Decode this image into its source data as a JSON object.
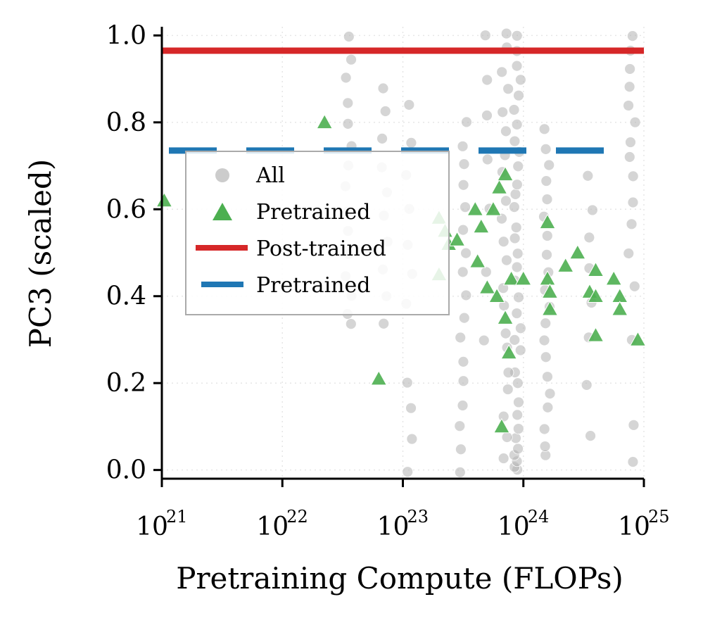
{
  "chart_data": {
    "type": "scatter",
    "xlabel": "Pretraining Compute (FLOPs)",
    "ylabel": "PC3 (scaled)",
    "xscale": "log",
    "xlim_exp": [
      21,
      25
    ],
    "ylim": [
      -0.02,
      1.02
    ],
    "x_ticks": [
      {
        "base": "10",
        "exp": "21"
      },
      {
        "base": "10",
        "exp": "22"
      },
      {
        "base": "10",
        "exp": "23"
      },
      {
        "base": "10",
        "exp": "24"
      },
      {
        "base": "10",
        "exp": "25"
      }
    ],
    "x_tick_exps": [
      21,
      22,
      23,
      24,
      25
    ],
    "y_ticks": [
      "0.0",
      "0.2",
      "0.4",
      "0.6",
      "0.8",
      "1.0"
    ],
    "y_tick_values": [
      0.0,
      0.2,
      0.4,
      0.6,
      0.8,
      1.0
    ],
    "grid": "dotted",
    "legend": {
      "position": "upper-left",
      "entries": [
        "All",
        "Pretrained",
        "Post-trained",
        "Pretrained"
      ]
    },
    "colors": {
      "all": "#b3b3b3",
      "pretrained_points": "#4caf50",
      "post_trained_line": "#d62728",
      "pretrained_line": "#1f77b4"
    },
    "series": [
      {
        "name": "All",
        "marker": "circle",
        "note": "dense gray columns of points at common compute budgets",
        "columns": [
          {
            "x_exp": 23.95,
            "y": [
              0.0,
              0.01,
              0.02,
              0.03,
              0.05,
              0.07,
              0.1,
              0.13,
              0.16,
              0.2,
              0.23,
              0.27,
              0.3,
              0.33,
              0.36,
              0.4,
              0.43,
              0.47,
              0.5,
              0.53,
              0.56,
              0.6,
              0.63,
              0.66,
              0.7,
              0.73,
              0.76,
              0.8,
              0.83,
              0.86,
              0.9,
              0.93,
              0.96,
              1.0
            ]
          },
          {
            "x_exp": 23.85,
            "y": [
              0.03,
              0.08,
              0.12,
              0.18,
              0.22,
              0.28,
              0.32,
              0.38,
              0.42,
              0.48,
              0.52,
              0.58,
              0.62,
              0.68,
              0.72,
              0.78,
              0.82,
              0.88,
              0.92,
              0.97,
              1.0
            ]
          },
          {
            "x_exp": 24.2,
            "y": [
              0.03,
              0.06,
              0.1,
              0.14,
              0.18,
              0.22,
              0.26,
              0.3,
              0.34,
              0.38,
              0.42,
              0.46,
              0.5,
              0.54,
              0.58,
              0.62,
              0.66,
              0.7,
              0.74,
              0.78
            ]
          },
          {
            "x_exp": 23.5,
            "y": [
              0.0,
              0.05,
              0.1,
              0.15,
              0.2,
              0.25,
              0.3,
              0.35,
              0.4,
              0.45,
              0.5,
              0.55,
              0.6,
              0.65,
              0.7,
              0.75,
              0.8
            ]
          },
          {
            "x_exp": 24.9,
            "y": [
              0.02,
              0.1,
              0.3,
              0.42,
              0.5,
              0.56,
              0.62,
              0.68,
              0.72,
              0.76,
              0.8,
              0.84,
              0.88,
              0.92,
              0.96,
              1.0
            ]
          },
          {
            "x_exp": 22.55,
            "y": [
              0.34,
              0.36,
              0.4,
              0.45,
              0.5,
              0.55,
              0.6,
              0.65,
              0.7,
              0.75,
              0.8,
              0.85,
              0.9,
              0.95,
              1.0
            ]
          },
          {
            "x_exp": 22.85,
            "y": [
              0.34,
              0.4,
              0.46,
              0.52,
              0.58,
              0.64,
              0.7,
              0.76,
              0.82,
              0.88
            ]
          },
          {
            "x_exp": 23.05,
            "y": [
              0.0,
              0.07,
              0.14,
              0.2,
              0.38,
              0.45,
              0.52,
              0.6,
              0.68,
              0.75,
              0.84
            ]
          },
          {
            "x_exp": 24.55,
            "y": [
              0.08,
              0.2,
              0.3,
              0.38,
              0.46,
              0.54,
              0.6,
              0.68
            ]
          },
          {
            "x_exp": 23.7,
            "y": [
              0.3,
              0.45,
              0.6,
              0.72,
              0.82,
              0.9,
              1.0
            ]
          }
        ]
      },
      {
        "name": "Pretrained",
        "marker": "triangle",
        "points": [
          [
            21.02,
            0.62
          ],
          [
            22.35,
            0.8
          ],
          [
            22.8,
            0.21
          ],
          [
            23.3,
            0.58
          ],
          [
            23.35,
            0.55
          ],
          [
            23.38,
            0.52
          ],
          [
            23.3,
            0.45
          ],
          [
            23.45,
            0.53
          ],
          [
            23.6,
            0.6
          ],
          [
            23.65,
            0.56
          ],
          [
            23.62,
            0.48
          ],
          [
            23.7,
            0.42
          ],
          [
            23.75,
            0.6
          ],
          [
            23.8,
            0.65
          ],
          [
            23.85,
            0.68
          ],
          [
            23.78,
            0.4
          ],
          [
            23.9,
            0.44
          ],
          [
            23.85,
            0.35
          ],
          [
            23.88,
            0.27
          ],
          [
            23.82,
            0.1
          ],
          [
            24.0,
            0.44
          ],
          [
            24.2,
            0.57
          ],
          [
            24.2,
            0.44
          ],
          [
            24.22,
            0.41
          ],
          [
            24.22,
            0.37
          ],
          [
            24.35,
            0.47
          ],
          [
            24.45,
            0.5
          ],
          [
            24.55,
            0.41
          ],
          [
            24.6,
            0.46
          ],
          [
            24.6,
            0.4
          ],
          [
            24.6,
            0.31
          ],
          [
            24.75,
            0.44
          ],
          [
            24.8,
            0.4
          ],
          [
            24.8,
            0.37
          ],
          [
            24.95,
            0.3
          ]
        ]
      },
      {
        "name": "Post-trained",
        "type": "hline",
        "y": 0.965
      },
      {
        "name": "Pretrained",
        "type": "hline",
        "style": "dashed",
        "y": 0.735
      }
    ]
  }
}
